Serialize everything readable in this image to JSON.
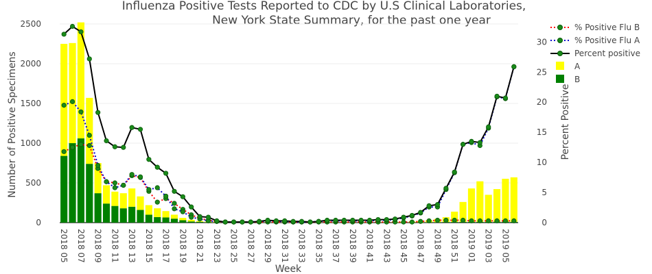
{
  "chart_data": {
    "type": "bar+line",
    "title_line1": "Influenza Positive Tests Reported to CDC by U.S Clinical Laboratories,",
    "title_line2": "New York State Summary, for the past one year",
    "xlabel": "Week",
    "ylabel": "Number of Positive Specimens",
    "y2label": "Percent Positive",
    "ylim": [
      0,
      2500
    ],
    "y2lim": [
      0,
      33
    ],
    "yticks": [
      "0",
      "500",
      "1000",
      "1500",
      "2000",
      "2500"
    ],
    "y2ticks": [
      "0",
      "5",
      "10",
      "15",
      "20",
      "25",
      "30"
    ],
    "grid": true,
    "legend_position": "top-right",
    "weeks": [
      "2018 05",
      "2018 06",
      "2018 07",
      "2018 08",
      "2018 09",
      "2018 10",
      "2018 11",
      "2018 12",
      "2018 13",
      "2018 14",
      "2018 15",
      "2018 16",
      "2018 17",
      "2018 18",
      "2018 19",
      "2018 20",
      "2018 21",
      "2018 22",
      "2018 23",
      "2018 24",
      "2018 25",
      "2018 26",
      "2018 27",
      "2018 28",
      "2018 29",
      "2018 30",
      "2018 31",
      "2018 32",
      "2018 33",
      "2018 34",
      "2018 35",
      "2018 36",
      "2018 37",
      "2018 38",
      "2018 39",
      "2018 40",
      "2018 41",
      "2018 42",
      "2018 43",
      "2018 44",
      "2018 45",
      "2018 46",
      "2018 47",
      "2018 48",
      "2018 49",
      "2018 50",
      "2018 51",
      "2018 52",
      "2019 01",
      "2019 02",
      "2019 03",
      "2019 04",
      "2019 05",
      "2019 06"
    ],
    "tick_labels": [
      "2018 05",
      "2018 07",
      "2018 09",
      "2018 11",
      "2018 13",
      "2018 15",
      "2018 17",
      "2018 19",
      "2018 21",
      "2018 23",
      "2018 25",
      "2018 27",
      "2018 29",
      "2018 31",
      "2018 33",
      "2018 35",
      "2018 37",
      "2018 39",
      "2018 41",
      "2018 43",
      "2018 45",
      "2018 47",
      "2018 49",
      "2018 51",
      "2019 01",
      "2019 03",
      "2019 05"
    ],
    "bars_A": [
      1410,
      1260,
      1460,
      830,
      380,
      230,
      180,
      190,
      230,
      170,
      120,
      110,
      80,
      50,
      30,
      20,
      10,
      8,
      6,
      5,
      4,
      4,
      3,
      3,
      3,
      3,
      3,
      3,
      3,
      3,
      3,
      3,
      3,
      3,
      3,
      3,
      3,
      3,
      4,
      5,
      7,
      10,
      15,
      25,
      40,
      60,
      130,
      250,
      420,
      510,
      340,
      410,
      540,
      560
    ],
    "bars_B": [
      840,
      1000,
      1060,
      740,
      370,
      240,
      210,
      180,
      200,
      160,
      100,
      70,
      65,
      50,
      30,
      15,
      10,
      5,
      4,
      3,
      3,
      3,
      2,
      2,
      2,
      2,
      2,
      2,
      2,
      2,
      2,
      2,
      2,
      2,
      2,
      2,
      2,
      2,
      2,
      2,
      3,
      3,
      4,
      5,
      6,
      8,
      8,
      10,
      10,
      10,
      10,
      12,
      12,
      10
    ],
    "series": [
      {
        "name": "% Positive Flu B",
        "color": "#ff0000",
        "values": [
          11.8,
          12.5,
          13.0,
          12.8,
          9.0,
          6.8,
          6.6,
          6.2,
          7.8,
          7.5,
          5.2,
          3.4,
          4.0,
          3.2,
          2.2,
          1.3,
          0.7,
          0.4,
          0.2,
          0.1,
          0.1,
          0.1,
          0.1,
          0.1,
          0.1,
          0.1,
          0.1,
          0.1,
          0.1,
          0.1,
          0.1,
          0.1,
          0.1,
          0.1,
          0.1,
          0.1,
          0.1,
          0.1,
          0.1,
          0.1,
          0.1,
          0.1,
          0.2,
          0.3,
          0.4,
          0.4,
          0.4,
          0.4,
          0.3,
          0.3,
          0.3,
          0.3,
          0.3,
          0.3
        ]
      },
      {
        "name": "% Positive Flu A",
        "color": "#0000cc",
        "values": [
          19.5,
          20.1,
          18.4,
          14.5,
          9.5,
          6.8,
          5.8,
          6.2,
          8.0,
          7.6,
          5.5,
          5.8,
          4.4,
          2.3,
          1.8,
          0.9,
          0.6,
          0.3,
          0.2,
          0.1,
          0.1,
          0.1,
          0.1,
          0.2,
          0.3,
          0.2,
          0.2,
          0.1,
          0.1,
          0.1,
          0.2,
          0.3,
          0.3,
          0.3,
          0.3,
          0.3,
          0.3,
          0.4,
          0.4,
          0.5,
          0.8,
          1.1,
          1.6,
          2.6,
          2.6,
          5.5,
          8.3,
          13.0,
          13.3,
          12.8,
          15.7,
          20.9,
          20.6,
          25.9
        ]
      },
      {
        "name": "Percent positive",
        "color": "#000000",
        "values": [
          31.3,
          32.6,
          31.7,
          27.2,
          18.3,
          13.6,
          12.6,
          12.5,
          15.8,
          15.5,
          10.5,
          9.2,
          8.2,
          5.2,
          4.3,
          2.6,
          1.0,
          0.9,
          0.3,
          0.1,
          0.1,
          0.1,
          0.1,
          0.2,
          0.4,
          0.3,
          0.3,
          0.2,
          0.2,
          0.1,
          0.2,
          0.4,
          0.4,
          0.4,
          0.4,
          0.4,
          0.4,
          0.5,
          0.5,
          0.6,
          0.9,
          1.2,
          1.7,
          2.8,
          3.0,
          5.7,
          8.4,
          13.0,
          13.5,
          13.3,
          15.9,
          21.0,
          20.7,
          25.9
        ]
      }
    ],
    "bar_series": [
      {
        "name": "A",
        "color": "#ffff00"
      },
      {
        "name": "B",
        "color": "#008000"
      }
    ]
  },
  "legend": {
    "flu_b": "% Positive Flu B",
    "flu_a": "% Positive Flu A",
    "percent": "Percent positive",
    "a": "A",
    "b": "B"
  }
}
